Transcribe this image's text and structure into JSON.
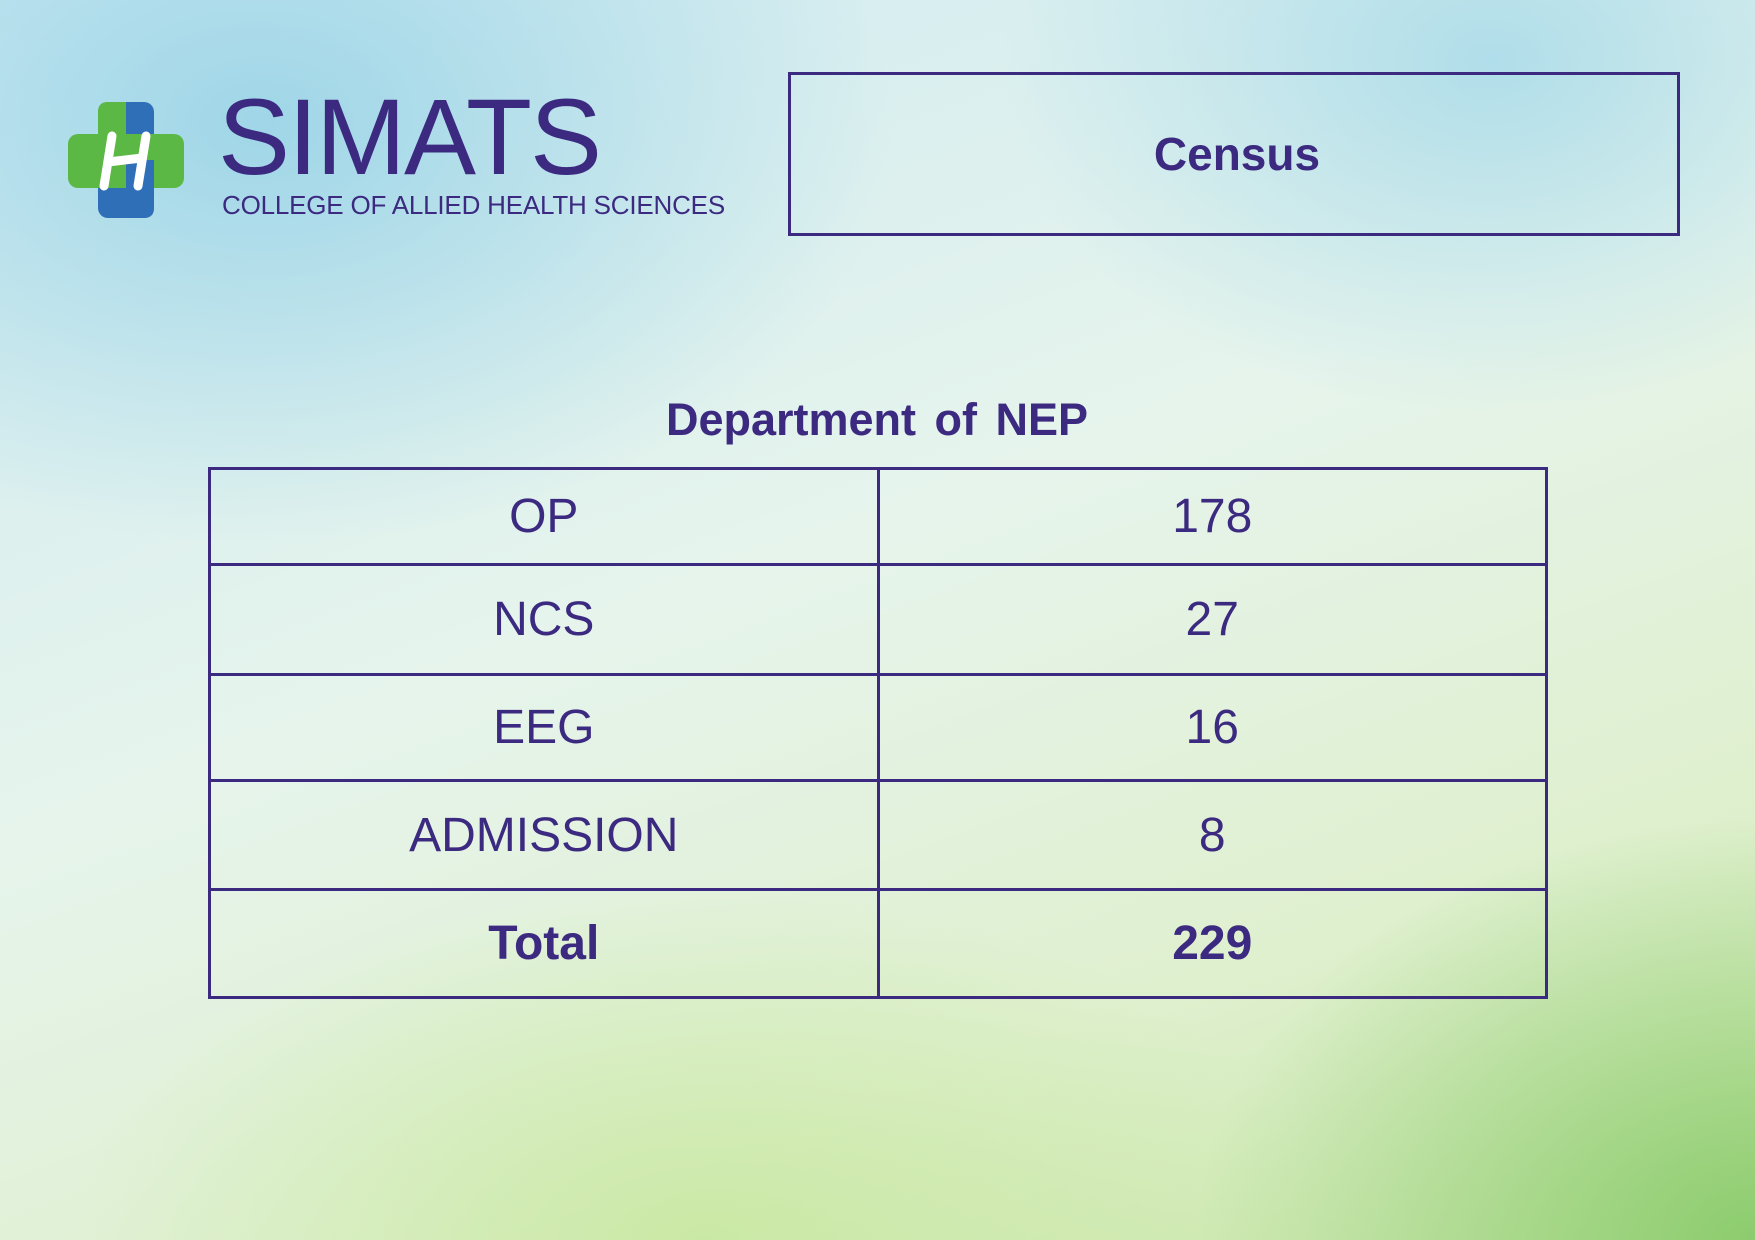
{
  "logo": {
    "wordmark": "SIMATS",
    "tagline": "COLLEGE OF ALLIED HEALTH SCIENCES",
    "colors": {
      "brand_purple": "#3b2a80",
      "cross_green": "#5cb844",
      "cross_blue": "#2f6fb8"
    }
  },
  "title_box": {
    "title": "Census"
  },
  "department": {
    "heading": "Department of NEP"
  },
  "table": {
    "rows": [
      {
        "label": "OP",
        "value": "178"
      },
      {
        "label": "NCS",
        "value": "27"
      },
      {
        "label": "EEG",
        "value": "16"
      },
      {
        "label": "ADMISSION",
        "value": "8"
      }
    ],
    "total": {
      "label": "Total",
      "value": "229"
    }
  }
}
